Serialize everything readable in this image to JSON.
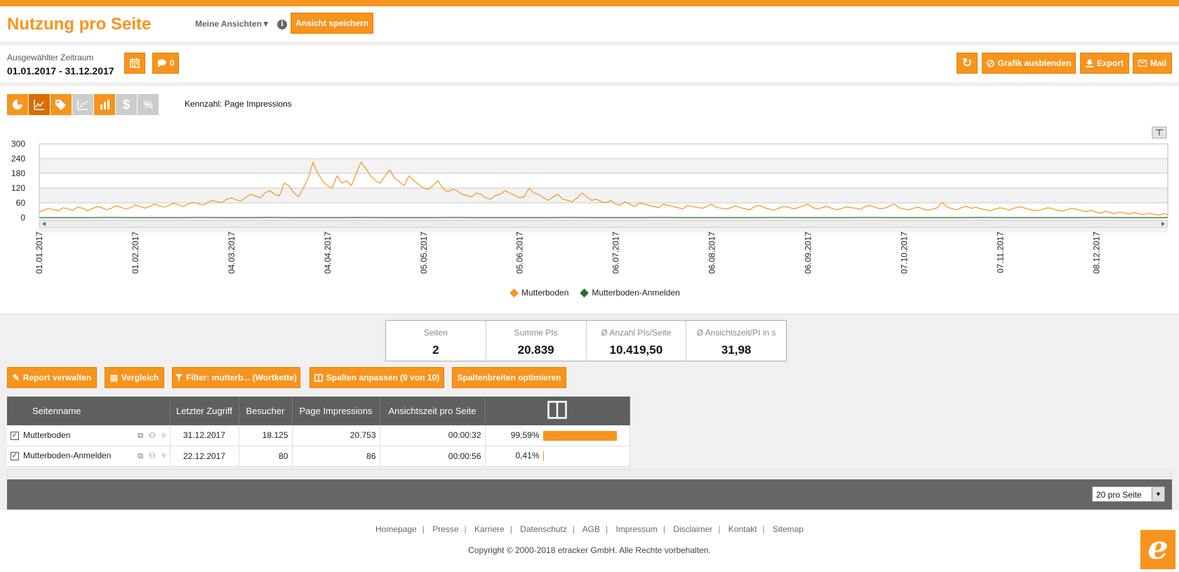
{
  "header": {
    "title": "Nutzung pro Seite",
    "views_label": "Meine Ansichten▼",
    "info_icon": "i",
    "save_view_label": "Ansicht speichern"
  },
  "period": {
    "label": "Ausgewählter Zeitraum",
    "value": "01.01.2017 - 31.12.2017",
    "comment_count": "0"
  },
  "actions": {
    "refresh_icon": "↻",
    "hide_chart_label": "Grafik ausblenden",
    "export_label": "Export",
    "mail_label": "Mail"
  },
  "chart_toolbar": {
    "metric_label": "Kennzahl: Page Impressions",
    "currency_icon": "$",
    "percent_icon": "%"
  },
  "chart_data": {
    "type": "line",
    "ylim": [
      0,
      300
    ],
    "yticks": [
      "300",
      "240",
      "180",
      "120",
      "60",
      "0"
    ],
    "x_labels": [
      "01.01.2017",
      "01.02.2017",
      "04.03.2017",
      "04.04.2017",
      "05.05.2017",
      "05.06.2017",
      "06.07.2017",
      "06.08.2017",
      "06.09.2017",
      "07.10.2017",
      "07.11.2017",
      "08.12.2017"
    ],
    "series": [
      {
        "name": "Mutterboden",
        "color": "#f7941d",
        "values": [
          25,
          30,
          38,
          32,
          28,
          40,
          35,
          30,
          42,
          38,
          28,
          36,
          45,
          40,
          32,
          38,
          48,
          42,
          35,
          40,
          52,
          45,
          38,
          46,
          55,
          48,
          42,
          50,
          58,
          52,
          45,
          55,
          62,
          58,
          50,
          60,
          70,
          65,
          60,
          75,
          80,
          72,
          68,
          82,
          95,
          88,
          80,
          100,
          110,
          95,
          88,
          140,
          130,
          100,
          85,
          120,
          160,
          225,
          180,
          150,
          130,
          120,
          170,
          140,
          150,
          130,
          180,
          225,
          200,
          170,
          150,
          140,
          170,
          195,
          160,
          145,
          130,
          170,
          150,
          135,
          120,
          115,
          130,
          150,
          120,
          105,
          115,
          110,
          95,
          90,
          85,
          100,
          95,
          80,
          75,
          90,
          95,
          110,
          100,
          90,
          80,
          85,
          120,
          100,
          95,
          80,
          70,
          85,
          95,
          75,
          70,
          65,
          80,
          100,
          85,
          70,
          75,
          65,
          60,
          70,
          55,
          50,
          65,
          55,
          45,
          60,
          55,
          50,
          45,
          40,
          55,
          50,
          45,
          40,
          35,
          50,
          45,
          42,
          38,
          45,
          55,
          42,
          38,
          35,
          40,
          48,
          40,
          36,
          32,
          45,
          50,
          40,
          35,
          30,
          38,
          45,
          42,
          36,
          40,
          48,
          55,
          42,
          35,
          40,
          45,
          38,
          32,
          36,
          44,
          40,
          38,
          34,
          45,
          50,
          42,
          36,
          38,
          46,
          55,
          40,
          35,
          32,
          38,
          42,
          36,
          30,
          34,
          40,
          62,
          44,
          36,
          32,
          40,
          46,
          38,
          42,
          36,
          32,
          28,
          34,
          40,
          36,
          30,
          38,
          44,
          40,
          34,
          30,
          28,
          34,
          40,
          36,
          30,
          26,
          32,
          38,
          34,
          28,
          24,
          30,
          22,
          18,
          26,
          20,
          16,
          22,
          18,
          14,
          20,
          16,
          12,
          18,
          14,
          10,
          16,
          12
        ]
      },
      {
        "name": "Mutterboden-Anmelden",
        "color": "#2e6b2e",
        "values": [
          0,
          0,
          0,
          1,
          0,
          0,
          0,
          1,
          0,
          0,
          1,
          0,
          0,
          0,
          1,
          0,
          0,
          0,
          1,
          0,
          0,
          0,
          0,
          1,
          0,
          0,
          0,
          1,
          0,
          0,
          0,
          0,
          1,
          0,
          0,
          0,
          1,
          0,
          0,
          0,
          0,
          1,
          0,
          0,
          0,
          0,
          1,
          0,
          0,
          0
        ]
      }
    ]
  },
  "kpis": [
    {
      "label": "Seiten",
      "value": "2"
    },
    {
      "label": "Summe PIs",
      "value": "20.839"
    },
    {
      "label": "Ø Anzahl PIs/Seite",
      "value": "10.419,50"
    },
    {
      "label": "Ø Ansichtszeit/PI in s",
      "value": "31,98"
    }
  ],
  "report_actions": {
    "manage_label": "Report verwalten",
    "compare_label": "Vergleich",
    "filter_label": "Filter: mutterb... (Wortkette)",
    "columns_label": "Spalten anpassen (9 von 10)",
    "optimize_label": "Spaltenbreiten optimieren"
  },
  "table": {
    "headers": [
      "Seitenname",
      "Letzter Zugriff",
      "Besucher",
      "Page Impressions",
      "Ansichtszeit pro Seite"
    ],
    "rows": [
      {
        "name": "Mutterboden",
        "last": "31.12.2017",
        "visitors": "18.125",
        "pi": "20.753",
        "time": "00:00:32",
        "share": "99,59%",
        "share_frac": 0.9959
      },
      {
        "name": "Mutterboden-Anmelden",
        "last": "22.12.2017",
        "visitors": "80",
        "pi": "86",
        "time": "00:00:56",
        "share": "0,41%",
        "share_frac": 0.0041
      }
    ]
  },
  "pager": {
    "per_page": "20 pro Seite"
  },
  "footer": {
    "links": [
      "Homepage",
      "Presse",
      "Karriere",
      "Datenschutz",
      "AGB",
      "Impressum",
      "Disclaimer",
      "Kontakt",
      "Sitemap"
    ],
    "copyright": "Copyright © 2000-2018 etracker GmbH. Alle Rechte vorbehalten.",
    "logo": "e"
  }
}
